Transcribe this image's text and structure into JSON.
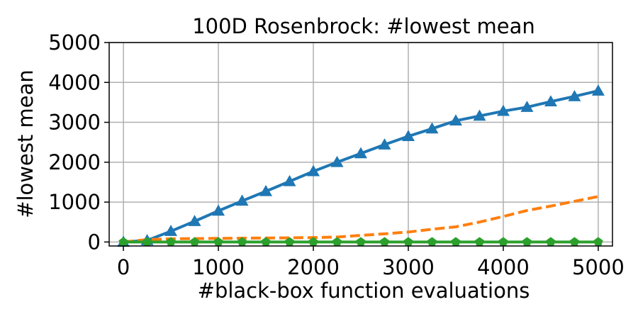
{
  "chart_data": {
    "type": "line",
    "title": "100D Rosenbrock: #lowest mean",
    "xlabel": "#black-box function evaluations",
    "ylabel": "#lowest mean",
    "xlim": [
      -150,
      5150
    ],
    "ylim": [
      -100,
      5000
    ],
    "xticks": [
      0,
      1000,
      2000,
      3000,
      4000,
      5000
    ],
    "xtick_labels": [
      "0",
      "1000",
      "2000",
      "3000",
      "4000",
      "5000"
    ],
    "yticks": [
      0,
      1000,
      2000,
      3000,
      4000,
      5000
    ],
    "ytick_labels": [
      "0",
      "1000",
      "2000",
      "3000",
      "4000",
      "5000"
    ],
    "grid": true,
    "legend": "none",
    "x": [
      0,
      250,
      500,
      750,
      1000,
      1250,
      1500,
      1750,
      2000,
      2250,
      2500,
      2750,
      3000,
      3250,
      3500,
      3750,
      4000,
      4250,
      4500,
      4750,
      5000
    ],
    "series": [
      {
        "color": "#1f77b4",
        "line_style": "solid",
        "marker": "triangle",
        "values": [
          0,
          40,
          270,
          520,
          780,
          1030,
          1270,
          1520,
          1770,
          2000,
          2220,
          2440,
          2650,
          2840,
          3040,
          3160,
          3280,
          3380,
          3520,
          3650,
          3790
        ]
      },
      {
        "color": "#ff7f0e",
        "line_style": "dashed",
        "marker": "none",
        "values": [
          0,
          60,
          80,
          85,
          90,
          95,
          100,
          105,
          110,
          125,
          165,
          205,
          250,
          320,
          380,
          500,
          640,
          790,
          900,
          1020,
          1140
        ]
      },
      {
        "color": "#2ca02c",
        "line_style": "solid",
        "marker": "pentagon",
        "values": [
          0,
          0,
          0,
          0,
          0,
          0,
          0,
          0,
          0,
          0,
          0,
          0,
          0,
          0,
          0,
          0,
          0,
          0,
          0,
          0,
          0
        ]
      }
    ]
  }
}
